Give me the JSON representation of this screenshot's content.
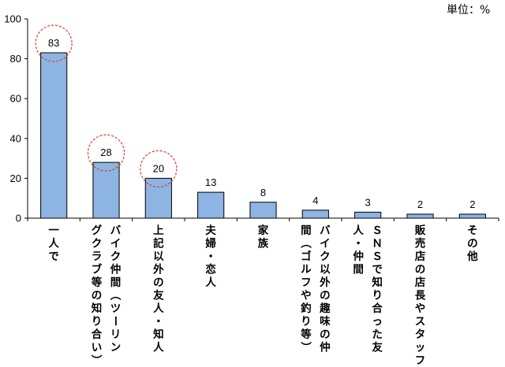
{
  "unit_label": "単位：%",
  "chart_data": {
    "type": "bar",
    "categories": [
      "一人で",
      "バイク仲間（ツーリングクラブ等の知り合い）",
      "上記以外の友人・知人",
      "夫婦・恋人",
      "家族",
      "バイク以外の趣味の仲間（ゴルフや釣り等）",
      "ＳＮＳで知り合った友人・仲間",
      "販売店の店長やスタッフ",
      "その他"
    ],
    "values": [
      83,
      28,
      20,
      13,
      8,
      4,
      3,
      2,
      2
    ],
    "highlighted": [
      0,
      1,
      2
    ],
    "ylim": [
      0,
      100
    ],
    "yticks": [
      0,
      20,
      40,
      60,
      80,
      100
    ],
    "grid": false,
    "colors": {
      "bar": "#8db4e2",
      "bar_stroke": "#000000",
      "highlight": "#e03a2f",
      "axis": "#000000"
    }
  }
}
